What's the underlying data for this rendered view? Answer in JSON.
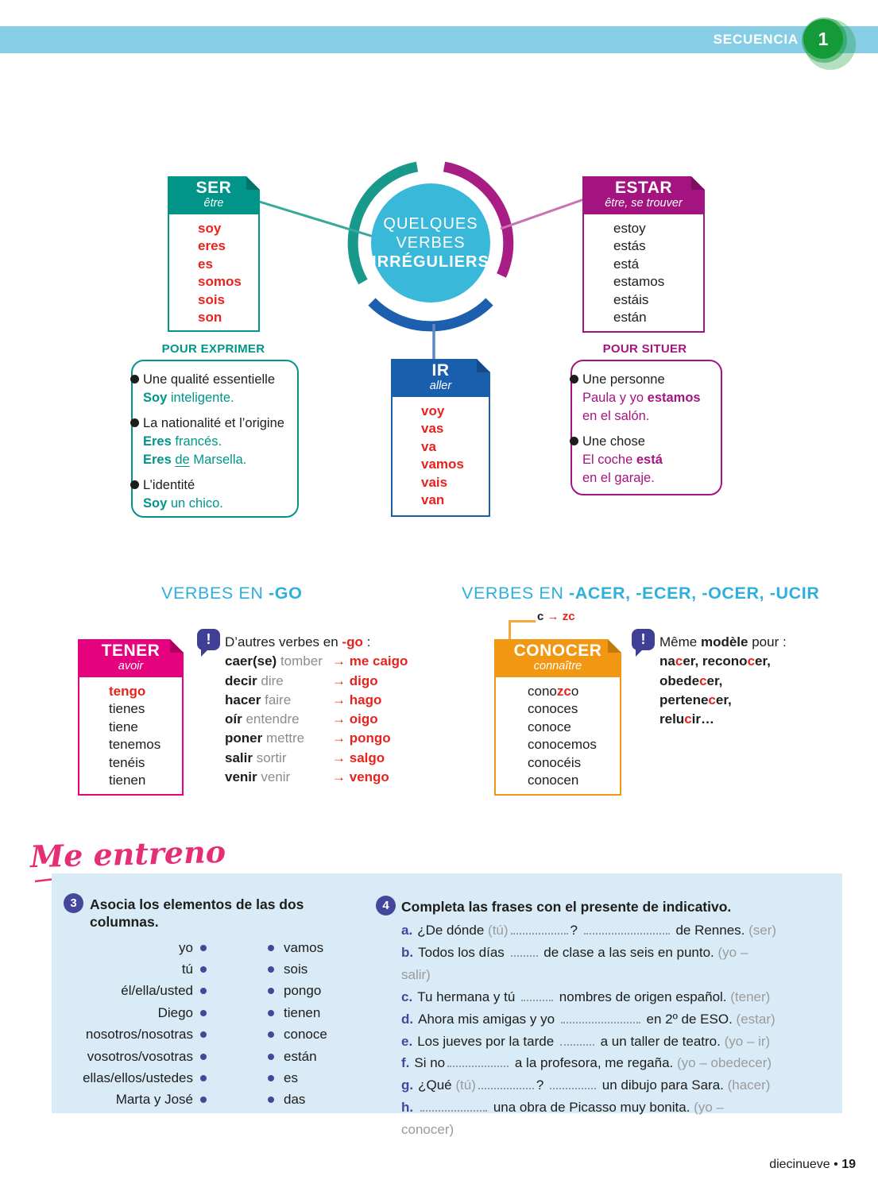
{
  "topbar": {
    "label": "SECUENCIA",
    "number": "1"
  },
  "colors": {
    "banner_blue": "#87cde6",
    "badge_green": "#149a38",
    "center_cyan": "#39b8d9",
    "ser_teal": "#019589",
    "estar_magenta": "#a41480",
    "ir_blue": "#1a5fae",
    "tener_pink": "#e6017e",
    "conocer_orange": "#f19712",
    "accent_red": "#e6231e",
    "heading_blue": "#2fafdb",
    "note_indigo": "#403f96",
    "exercise_bg": "#d9ebf6",
    "me_entreno_pink": "#e62e76"
  },
  "diagram": {
    "center_lines": [
      "QUELQUES",
      "VERBES",
      "IRRÉGULIERS"
    ],
    "ser": {
      "title": "SER",
      "subtitle": "être",
      "forms": [
        [
          {
            "t": "soy",
            "red": 1,
            "b": 1
          }
        ],
        [
          {
            "t": "eres",
            "red": 1,
            "b": 1
          }
        ],
        [
          {
            "t": "es",
            "red": 1,
            "b": 1
          }
        ],
        [
          {
            "t": "somos",
            "red": 1,
            "b": 1
          }
        ],
        [
          {
            "t": "sois",
            "red": 1,
            "b": 1
          }
        ],
        [
          {
            "t": "son",
            "red": 1,
            "b": 1
          }
        ]
      ]
    },
    "estar": {
      "title": "ESTAR",
      "subtitle": "être, se trouver",
      "forms": [
        [
          {
            "t": "estoy"
          }
        ],
        [
          {
            "t": "estás"
          }
        ],
        [
          {
            "t": "está"
          }
        ],
        [
          {
            "t": "estamos"
          }
        ],
        [
          {
            "t": "estáis"
          }
        ],
        [
          {
            "t": "están"
          }
        ]
      ]
    },
    "ir": {
      "title": "IR",
      "subtitle": "aller",
      "forms": [
        [
          {
            "t": "voy",
            "red": 1,
            "b": 1
          }
        ],
        [
          {
            "t": "vas",
            "red": 1,
            "b": 1
          }
        ],
        [
          {
            "t": "va",
            "red": 1,
            "b": 1
          }
        ],
        [
          {
            "t": "vamos",
            "red": 1,
            "b": 1
          }
        ],
        [
          {
            "t": "vais",
            "red": 1,
            "b": 1
          }
        ],
        [
          {
            "t": "van",
            "red": 1,
            "b": 1
          }
        ]
      ]
    },
    "pour_exprimer": {
      "label": "POUR EXPRIMER",
      "items": [
        {
          "head": "Une qualité essentielle",
          "lines": [
            [
              {
                "t": "Soy",
                "b": 1
              },
              {
                "t": " inteligente."
              }
            ]
          ]
        },
        {
          "head": "La nationalité et l’origine",
          "lines": [
            [
              {
                "t": "Eres",
                "b": 1
              },
              {
                "t": " francés."
              }
            ],
            [
              {
                "t": "Eres",
                "b": 1
              },
              {
                "t": " "
              },
              {
                "t": "de",
                "u": 1
              },
              {
                "t": " Marsella."
              }
            ]
          ]
        },
        {
          "head": "L’identité",
          "lines": [
            [
              {
                "t": "Soy",
                "b": 1
              },
              {
                "t": " un chico."
              }
            ]
          ]
        }
      ]
    },
    "pour_situer": {
      "label": "POUR SITUER",
      "items": [
        {
          "head": "Une personne",
          "lines": [
            [
              {
                "t": "Paula y yo "
              },
              {
                "t": "estamos",
                "b": 1
              }
            ],
            [
              {
                "t": "en el salón."
              }
            ]
          ]
        },
        {
          "head": "Une chose",
          "lines": [
            [
              {
                "t": "El coche "
              },
              {
                "t": "está",
                "b": 1
              }
            ],
            [
              {
                "t": "en el garaje."
              }
            ]
          ]
        }
      ]
    }
  },
  "go_section": {
    "heading_normal": "VERBES EN ",
    "heading_bold": "-GO",
    "tener": {
      "title": "TENER",
      "subtitle": "avoir",
      "forms": [
        [
          {
            "t": "tengo",
            "red": 1,
            "b": 1
          }
        ],
        [
          {
            "t": "tienes"
          }
        ],
        [
          {
            "t": "tiene"
          }
        ],
        [
          {
            "t": "tenemos"
          }
        ],
        [
          {
            "t": "tenéis"
          }
        ],
        [
          {
            "t": "tienen"
          }
        ]
      ]
    },
    "note_intro": [
      {
        "t": "D’autres verbes en "
      },
      {
        "t": "-go",
        "red": 1,
        "b": 1
      },
      {
        "t": " :"
      }
    ],
    "rows": [
      {
        "es": "caer(se)",
        "fr": "tomber",
        "arrow": "→",
        "res": "me caigo"
      },
      {
        "es": "decir",
        "fr": "dire",
        "arrow": "→",
        "res": "digo"
      },
      {
        "es": "hacer",
        "fr": "faire",
        "arrow": "→",
        "res": "hago"
      },
      {
        "es": "oír",
        "fr": "entendre",
        "arrow": "→",
        "res": "oigo"
      },
      {
        "es": "poner",
        "fr": "mettre",
        "arrow": "→",
        "res": "pongo"
      },
      {
        "es": "salir",
        "fr": "sortir",
        "arrow": "→",
        "res": "salgo"
      },
      {
        "es": "venir",
        "fr": "venir",
        "arrow": "→",
        "res": "vengo"
      }
    ]
  },
  "cer_section": {
    "heading_normal": "VERBES EN ",
    "heading_bold": "-ACER, -ECER, -OCER, -UCIR",
    "rule_label": [
      {
        "t": "c ",
        "b": 1
      },
      {
        "t": "→ ",
        "red": 1,
        "b": 1
      },
      {
        "t": "zc",
        "red": 1,
        "b": 1
      }
    ],
    "conocer": {
      "title": "CONOCER",
      "subtitle": "connaître",
      "forms": [
        [
          {
            "t": "cono"
          },
          {
            "t": "zc",
            "red": 1,
            "b": 1
          },
          {
            "t": "o"
          }
        ],
        [
          {
            "t": "conoces"
          }
        ],
        [
          {
            "t": "conoce"
          }
        ],
        [
          {
            "t": "conocemos"
          }
        ],
        [
          {
            "t": "conocéis"
          }
        ],
        [
          {
            "t": "conocen"
          }
        ]
      ]
    },
    "note_intro": [
      {
        "t": "Même "
      },
      {
        "t": "modèle",
        "b": 1
      },
      {
        "t": " pour :"
      }
    ],
    "note_lines": [
      [
        {
          "t": "na",
          "b": 1
        },
        {
          "t": "c",
          "b": 1,
          "red": 1
        },
        {
          "t": "er, recono",
          "b": 1
        },
        {
          "t": "c",
          "b": 1,
          "red": 1
        },
        {
          "t": "er,",
          "b": 1
        }
      ],
      [
        {
          "t": "obede",
          "b": 1
        },
        {
          "t": "c",
          "b": 1,
          "red": 1
        },
        {
          "t": "er,",
          "b": 1
        }
      ],
      [
        {
          "t": "pertene",
          "b": 1
        },
        {
          "t": "c",
          "b": 1,
          "red": 1
        },
        {
          "t": "er,",
          "b": 1
        }
      ],
      [
        {
          "t": "relu",
          "b": 1
        },
        {
          "t": "c",
          "b": 1,
          "red": 1
        },
        {
          "t": "ir…",
          "b": 1
        }
      ]
    ]
  },
  "me_entreno": {
    "title": "Me entreno"
  },
  "exercises": {
    "ex3": {
      "number": "3",
      "title": "Asocia los elementos de las dos columnas.",
      "left": [
        "yo",
        "tú",
        "él/ella/usted",
        "Diego",
        "nosotros/nosotras",
        "vosotros/vosotras",
        "ellas/ellos/ustedes",
        "Marta y José"
      ],
      "right": [
        "vamos",
        "sois",
        "pongo",
        "tienen",
        "conoce",
        "están",
        "es",
        "das"
      ]
    },
    "ex4": {
      "number": "4",
      "title": "Completa las frases con el presente de indicativo.",
      "items": [
        {
          "letter": "a.",
          "segs": [
            {
              "t": "¿De dónde "
            },
            {
              "t": "(tú)",
              "h": 1
            },
            {
              "blank": 72
            },
            {
              "t": "? "
            },
            {
              "blank": 108
            },
            {
              "t": " de Rennes. "
            },
            {
              "t": "(ser)",
              "h": 1
            }
          ]
        },
        {
          "letter": "b.",
          "segs": [
            {
              "t": "Todos los días "
            },
            {
              "blank": 34
            },
            {
              "t": " de clase a las seis en punto. "
            },
            {
              "t": "(yo – salir)",
              "h": 1
            }
          ]
        },
        {
          "letter": "c.",
          "segs": [
            {
              "t": "Tu hermana y tú "
            },
            {
              "blank": 40
            },
            {
              "t": " nombres de origen español. "
            },
            {
              "t": "(tener)",
              "h": 1
            }
          ]
        },
        {
          "letter": "d.",
          "segs": [
            {
              "t": "Ahora mis amigas y yo "
            },
            {
              "blank": 100
            },
            {
              "t": " en 2º de ESO. "
            },
            {
              "t": "(estar)",
              "h": 1
            }
          ]
        },
        {
          "letter": "e.",
          "segs": [
            {
              "t": "Los jueves por la tarde "
            },
            {
              "blank": 43
            },
            {
              "t": " a un taller de teatro. "
            },
            {
              "t": "(yo – ir)",
              "h": 1
            }
          ]
        },
        {
          "letter": "f.",
          "segs": [
            {
              "t": "Si no"
            },
            {
              "blank": 77
            },
            {
              "t": " a la profesora, me regaña. "
            },
            {
              "t": "(yo – obedecer)",
              "h": 1
            }
          ]
        },
        {
          "letter": "g.",
          "segs": [
            {
              "t": "¿Qué "
            },
            {
              "t": "(tú)",
              "h": 1
            },
            {
              "blank": 70
            },
            {
              "t": "? "
            },
            {
              "blank": 58
            },
            {
              "t": " un dibujo para Sara. "
            },
            {
              "t": "(hacer)",
              "h": 1
            }
          ]
        },
        {
          "letter": "h.",
          "segs": [
            {
              "blank": 84
            },
            {
              "t": " una obra de Picasso muy bonita. "
            },
            {
              "t": "(yo – conocer)",
              "h": 1
            }
          ]
        }
      ]
    }
  },
  "footer": {
    "word": "diecinueve",
    "sep": "•",
    "num": "19"
  }
}
